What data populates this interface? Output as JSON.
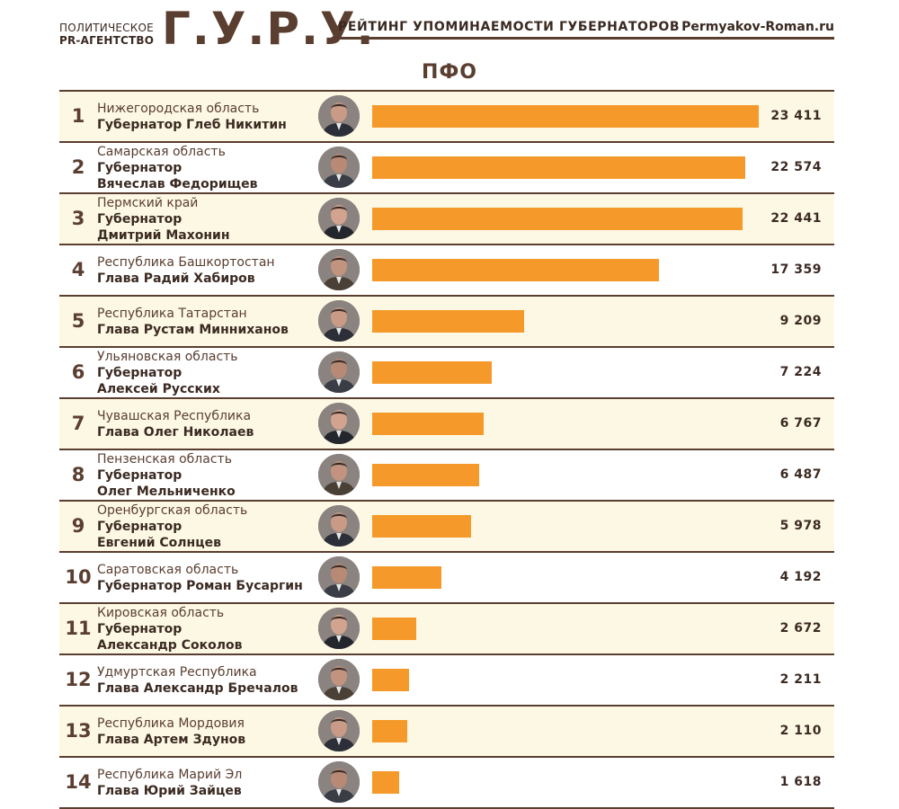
{
  "header": {
    "agency_line1": "ПОЛИТИЧЕСКОЕ",
    "agency_line2": "PR-АГЕНТСТВО",
    "logo": "Г.У.Р.У.",
    "rating_title": "РЕЙТИНГ УПОМИНАЕМОСТИ ГУБЕРНАТОРОВ",
    "site": "Permyakov-Roman.ru"
  },
  "region": "ПФО",
  "colors": {
    "bar": "#f59a2a",
    "text": "#5a3e30",
    "rule": "#5a3e30",
    "row_alt": "#fdf8e4"
  },
  "chart_data": {
    "type": "bar",
    "orientation": "horizontal",
    "title": "ПФО",
    "xlim": [
      0,
      23411
    ],
    "categories": [
      {
        "rank": "1",
        "lines": [
          "Нижегородская область",
          "Губернатор Глеб Никитин"
        ]
      },
      {
        "rank": "2",
        "lines": [
          "Самарская область",
          "Губернатор",
          "Вячеслав Федорищев"
        ]
      },
      {
        "rank": "3",
        "lines": [
          "Пермский край",
          "Губернатор",
          "Дмитрий Махонин"
        ]
      },
      {
        "rank": "4",
        "lines": [
          "Республика Башкортостан",
          "Глава Радий Хабиров"
        ]
      },
      {
        "rank": "5",
        "lines": [
          "Республика Татарстан",
          "Глава Рустам Минниханов"
        ]
      },
      {
        "rank": "6",
        "lines": [
          "Ульяновская область",
          "Губернатор",
          "Алексей Русских"
        ]
      },
      {
        "rank": "7",
        "lines": [
          "Чувашская Республика",
          "Глава Олег Николаев"
        ]
      },
      {
        "rank": "8",
        "lines": [
          "Пензенская область",
          "Губернатор",
          "Олег Мельниченко"
        ]
      },
      {
        "rank": "9",
        "lines": [
          "Оренбургская область",
          "Губернатор",
          "Евгений Солнцев"
        ]
      },
      {
        "rank": "10",
        "lines": [
          "Саратовская область",
          "Губернатор Роман Бусаргин"
        ]
      },
      {
        "rank": "11",
        "lines": [
          "Кировская область",
          "Губернатор",
          "Александр Соколов"
        ]
      },
      {
        "rank": "12",
        "lines": [
          "Удмуртская Республика",
          "Глава Александр Бречалов"
        ]
      },
      {
        "rank": "13",
        "lines": [
          "Республика Мордовия",
          "Глава Артем Здунов"
        ]
      },
      {
        "rank": "14",
        "lines": [
          "Республика Марий Эл",
          "Глава Юрий Зайцев"
        ]
      }
    ],
    "values": [
      23411,
      22574,
      22441,
      17359,
      9209,
      7224,
      6767,
      6487,
      5978,
      4192,
      2672,
      2211,
      2110,
      1618
    ],
    "value_labels": [
      "23 411",
      "22 574",
      "22 441",
      "17 359",
      "9 209",
      "7 224",
      "6 767",
      "6 487",
      "5 978",
      "4 192",
      "2 672",
      "2 211",
      "2 110",
      "1 618"
    ]
  }
}
